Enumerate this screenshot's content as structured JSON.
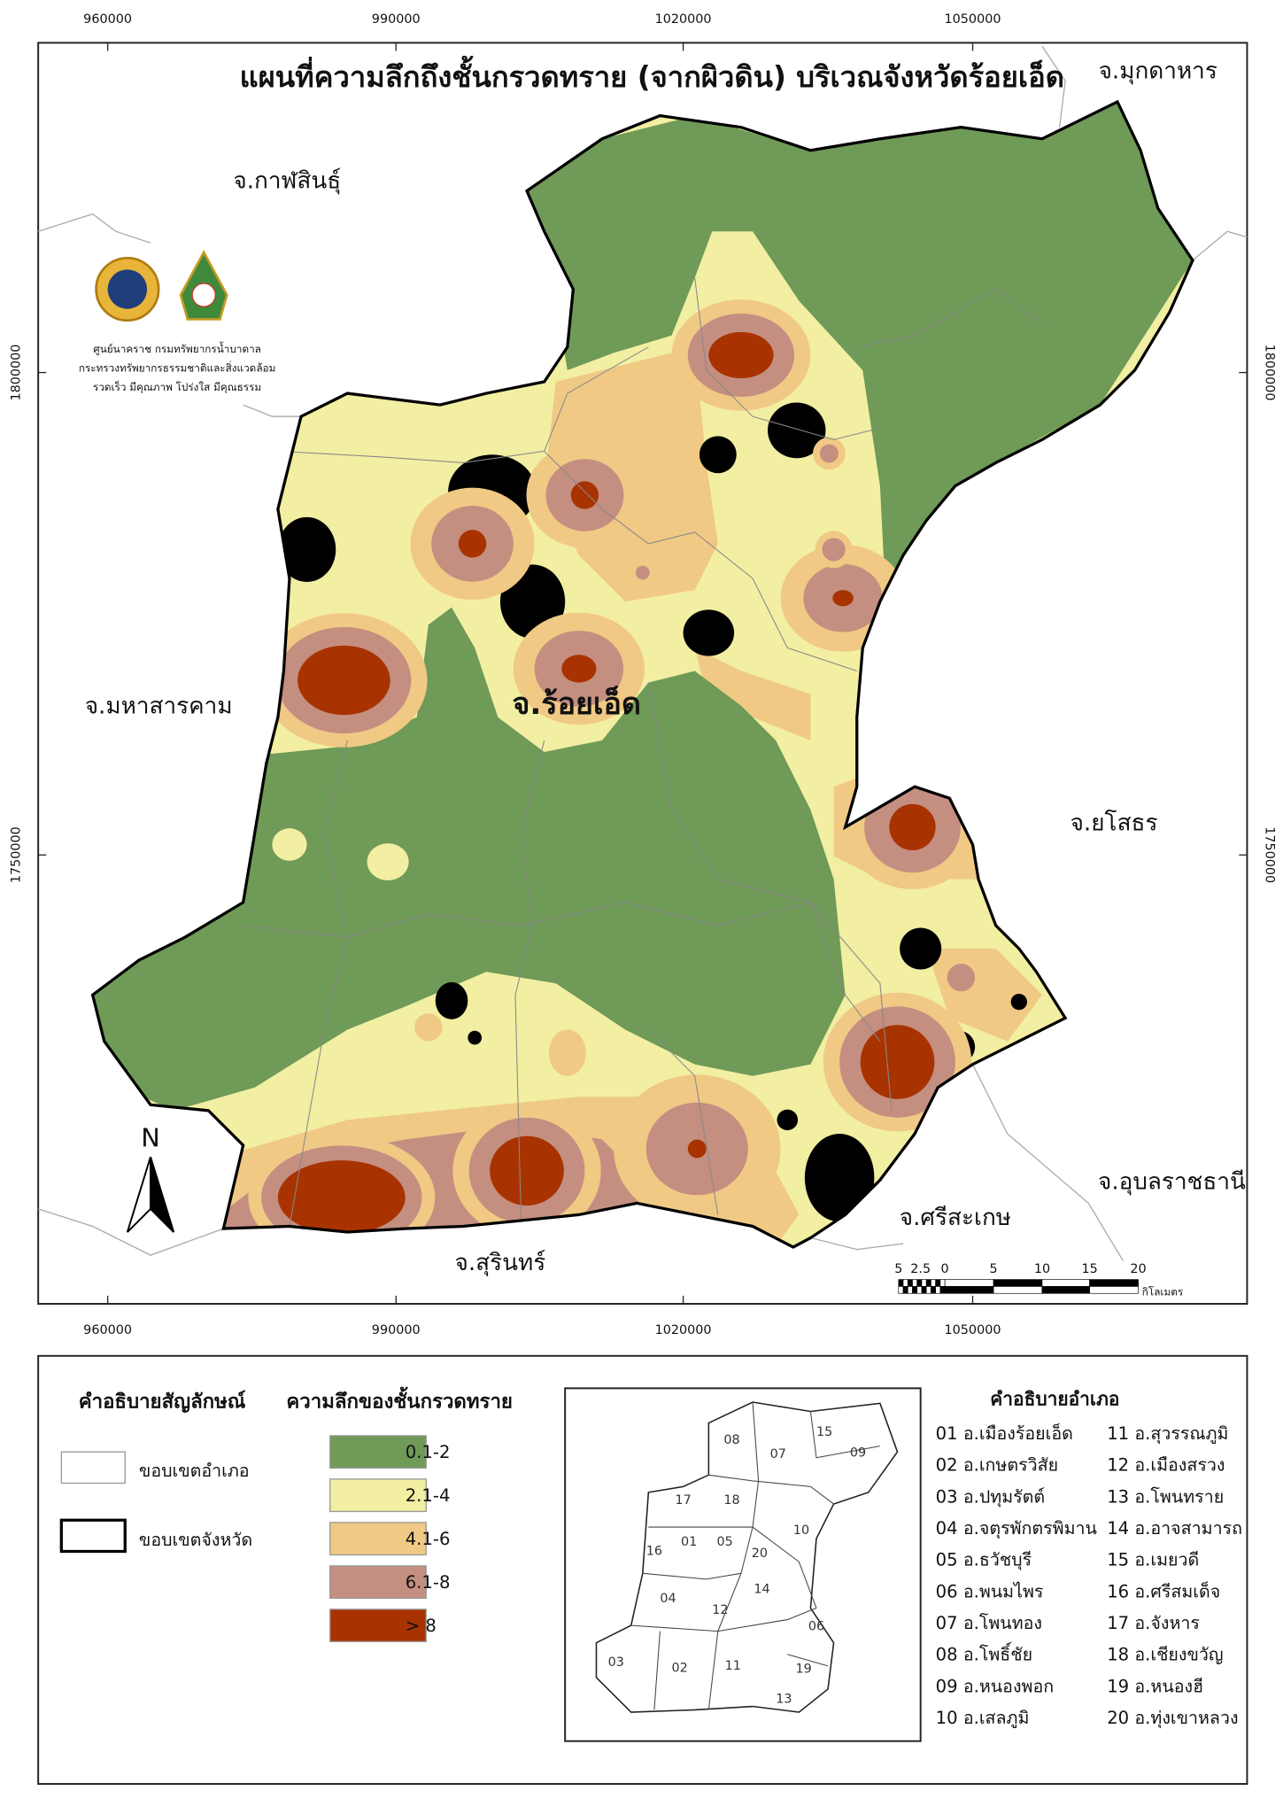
{
  "title": "แผนที่ความลึกถึงชั้นกรวดทราย (จากผิวดิน) บริเวณจังหวัดร้อยเอ็ด",
  "grid_labels": {
    "top": [
      960000,
      990000,
      1020000,
      1050000
    ],
    "bottom": [
      960000,
      990000,
      1020000,
      1050000
    ],
    "left": [
      1800000,
      1750000
    ],
    "right": [
      1800000,
      1750000
    ]
  },
  "provinces": [
    "จ.มุกดาหาร",
    "จ.กาฬสินธุ์",
    "จ.มหาสารคาม",
    "จ.ยโสธร",
    "จ.อุบลราชธานี",
    "จ.ศรีสะเกษ",
    "จ.สุรินทร์"
  ],
  "province_label": "จ.ร้อยเอ็ด",
  "agency": [
    "ศูนย์นาคราช กรมทรัพยากรน้ำบาดาล",
    "กระทรวงทรัพยากรธรรมชาติและสิ่งแวดล้อม",
    "รวดเร็ว มีคุณภาพ โปร่งใส มีคุณธรรม"
  ],
  "north": "N",
  "scale": {
    "labels": [
      5,
      2.5,
      0,
      5,
      10,
      15,
      20
    ],
    "unit": "กิโลเมตร"
  },
  "legend": {
    "title": "คำอธิบายสัญลักษณ์",
    "boundary_items": [
      "ขอบเขตอำเภอ",
      "ขอบเขตจังหวัด"
    ],
    "depth_title": "ความลึกของชั้นกรวดทราย",
    "depth_classes": [
      {
        "label": "0.1-2",
        "color": "#6f9a57"
      },
      {
        "label": "2.1-4",
        "color": "#f2eea2"
      },
      {
        "label": "4.1-6",
        "color": "#f0c985"
      },
      {
        "label": "6.1-8",
        "color": "#c48f80"
      },
      {
        "label": "> 8",
        "color": "#a83300"
      }
    ]
  },
  "inset": {
    "title": "คำอธิบายอำเภอ",
    "numbers": [
      "08",
      "07",
      "15",
      "09",
      "17",
      "18",
      "16",
      "01",
      "05",
      "20",
      "10",
      "04",
      "12",
      "14",
      "06",
      "03",
      "02",
      "11",
      "19",
      "13"
    ],
    "districts": [
      "01 อ.เมืองร้อยเอ็ด",
      "02 อ.เกษตรวิสัย",
      "03 อ.ปทุมรัตต์",
      "04 อ.จตุรพักตรพิมาน",
      "05 อ.ธวัชบุรี",
      "06 อ.พนมไพร",
      "07 อ.โพนทอง",
      "08 อ.โพธิ์ชัย",
      "09 อ.หนองพอก",
      "10 อ.เสลภูมิ",
      "11 อ.สุวรรณภูมิ",
      "12 อ.เมืองสรวง",
      "13 อ.โพนทราย",
      "14 อ.อาจสามารถ",
      "15 อ.เมยวดี",
      "16 อ.ศรีสมเด็จ",
      "17 อ.จังหาร",
      "18 อ.เชียงขวัญ",
      "19 อ.หนองฮี",
      "20 อ.ทุ่งเขาหลวง"
    ]
  }
}
